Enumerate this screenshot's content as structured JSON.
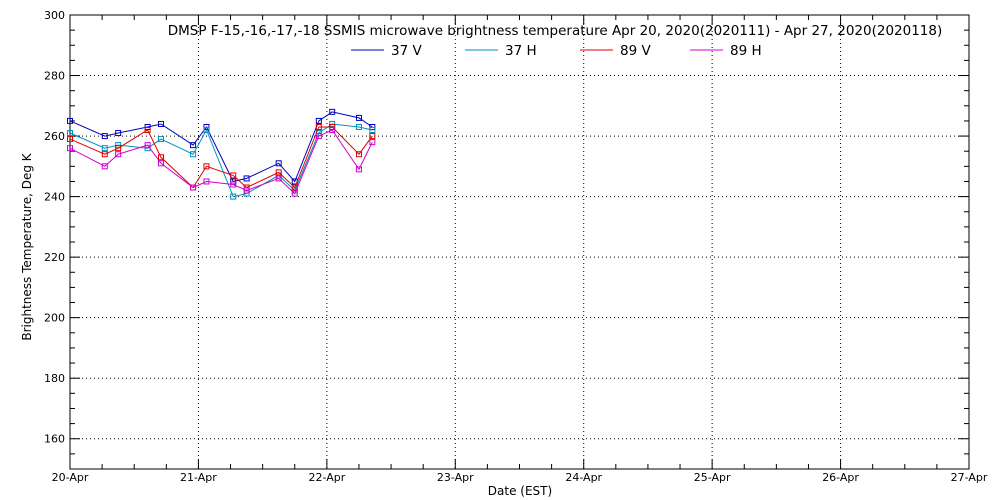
{
  "chart_data": {
    "type": "line",
    "title": "DMSP F-15,-16,-17,-18 SSMIS microwave brightness temperature Apr 20, 2020(2020111) - Apr 27, 2020(2020118)",
    "xlabel": "Date (EST)",
    "ylabel": "Brightness Temperature, Deg K",
    "xlim": [
      "2020-04-20 00:00",
      "2020-04-27 00:00"
    ],
    "ylim": [
      150,
      300
    ],
    "yticks": [
      160,
      180,
      200,
      220,
      240,
      260,
      280,
      300
    ],
    "xtick_labels": [
      "20-Apr",
      "21-Apr",
      "22-Apr",
      "23-Apr",
      "24-Apr",
      "25-Apr",
      "26-Apr",
      "27-Apr"
    ],
    "grid": true,
    "legend_position": "top-center",
    "x": [
      "2020-04-20 00:00",
      "2020-04-20 06:30",
      "2020-04-20 09:00",
      "2020-04-20 14:30",
      "2020-04-20 17:00",
      "2020-04-20 23:00",
      "2020-04-21 01:30",
      "2020-04-21 06:30",
      "2020-04-21 09:00",
      "2020-04-21 15:00",
      "2020-04-21 18:00",
      "2020-04-21 22:30",
      "2020-04-22 01:00",
      "2020-04-22 06:00",
      "2020-04-22 08:30",
      "2020-04-22 17:00",
      "2020-04-22 19:30"
    ],
    "series": [
      {
        "name": "37 V",
        "color": "#0000c0",
        "values": [
          265,
          260,
          261,
          263,
          264,
          257,
          263,
          245,
          246,
          251,
          245,
          265,
          268,
          266,
          263,
          null,
          null
        ]
      },
      {
        "name": "37 H",
        "color": "#0090c0",
        "values": [
          261,
          256,
          257,
          256,
          259,
          254,
          262,
          240,
          241,
          247,
          242,
          261,
          264,
          263,
          262,
          null,
          null
        ]
      },
      {
        "name": "89 V",
        "color": "#e00000",
        "values": [
          259,
          254,
          256,
          262,
          253,
          243,
          250,
          247,
          243,
          248,
          243,
          263,
          263,
          254,
          260,
          null,
          null
        ]
      },
      {
        "name": "89 H",
        "color": "#d000d0",
        "values": [
          256,
          250,
          254,
          257,
          251,
          243,
          245,
          244,
          242,
          246,
          241,
          260,
          262,
          249,
          258,
          null,
          null
        ]
      }
    ]
  }
}
